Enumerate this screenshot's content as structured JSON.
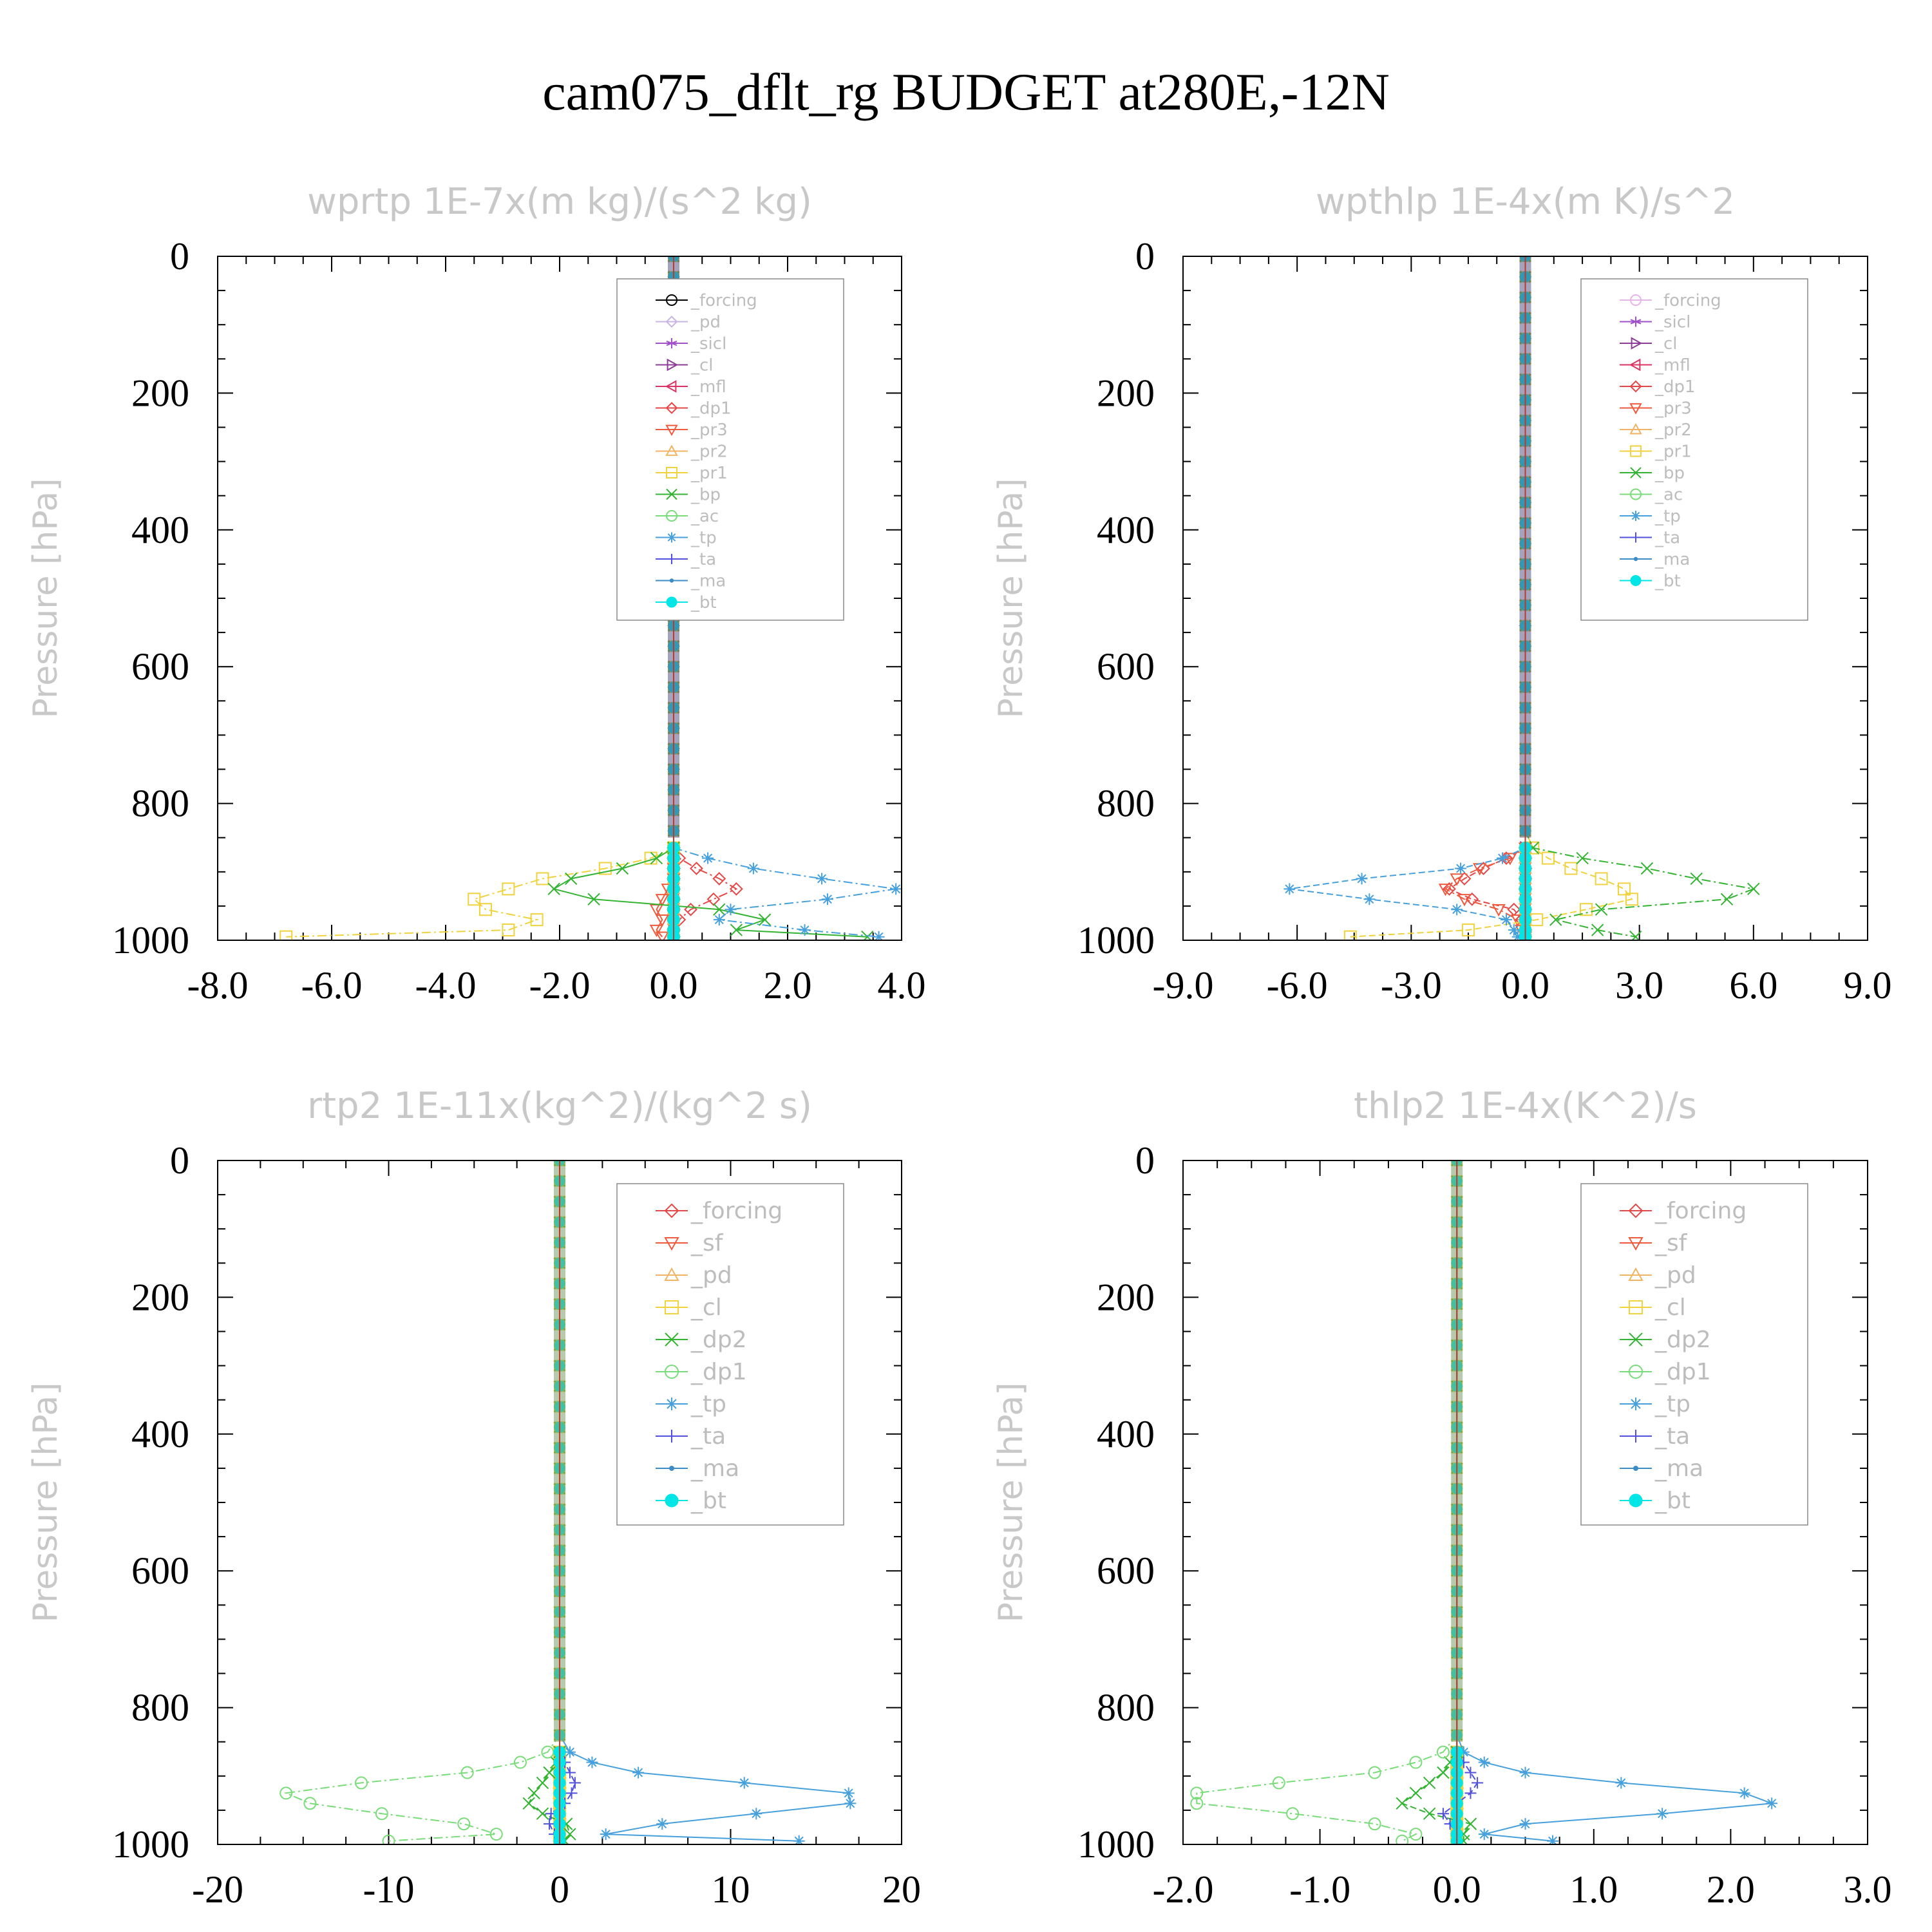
{
  "title": "cam075_dflt_rg  BUDGET at280E,-12N",
  "chart_data": [
    {
      "type": "line",
      "title": "wprtp  1E-7x(m kg)/(s^2 kg)",
      "ylabel": "Pressure [hPa]",
      "xlim": [
        -8,
        4
      ],
      "ylim": [
        0,
        1000
      ],
      "y_inverted": true,
      "xticks": [
        "-8.0",
        "-6.0",
        "-4.0",
        "-2.0",
        "0.0",
        "2.0",
        "4.0"
      ],
      "yticks": [
        "0",
        "200",
        "400",
        "600",
        "800",
        "1000"
      ],
      "legend_position": "top-right",
      "levels": [
        865,
        880,
        895,
        910,
        925,
        940,
        955,
        970,
        985,
        995
      ],
      "series": [
        {
          "name": "_forcing",
          "color": "#000000",
          "marker": "circle",
          "values": [
            0,
            0,
            0,
            0,
            0,
            0,
            0,
            0,
            0,
            0
          ]
        },
        {
          "name": "_pd",
          "color": "#c8b4e6",
          "marker": "diamond",
          "values": [
            0,
            0,
            0,
            0,
            0,
            0,
            0,
            0,
            0,
            0
          ]
        },
        {
          "name": "_sicl",
          "color": "#a050c8",
          "marker": "star",
          "values": [
            0,
            0,
            0,
            0,
            0,
            0,
            0,
            0,
            0,
            0
          ]
        },
        {
          "name": "_cl",
          "color": "#8c3c96",
          "marker": "tri-right",
          "values": [
            0,
            0,
            0,
            0,
            0,
            0,
            0,
            0,
            0,
            0
          ]
        },
        {
          "name": "_mfl",
          "color": "#dc3264",
          "marker": "tri-left",
          "values": [
            0,
            0,
            0,
            0,
            0,
            0,
            0,
            0,
            0,
            0
          ]
        },
        {
          "name": "_dp1",
          "color": "#e64646",
          "marker": "diamond",
          "values": [
            0,
            0.1,
            0.4,
            0.8,
            1.1,
            0.7,
            0.3,
            0.1,
            0,
            0
          ]
        },
        {
          "name": "_pr3",
          "color": "#f05a3c",
          "marker": "tri-down",
          "values": [
            0,
            0,
            0,
            0,
            -0.1,
            -0.2,
            -0.3,
            -0.2,
            -0.3,
            -0.2
          ]
        },
        {
          "name": "_pr2",
          "color": "#f0b464",
          "marker": "tri-up",
          "values": [
            0,
            0,
            0,
            0,
            0,
            0,
            0,
            0,
            0,
            0
          ]
        },
        {
          "name": "_pr1",
          "color": "#f0d23c",
          "marker": "square",
          "values": [
            0,
            -0.4,
            -1.2,
            -2.3,
            -2.9,
            -3.5,
            -3.3,
            -2.4,
            -2.9,
            -6.8
          ]
        },
        {
          "name": "_bp",
          "color": "#32b432",
          "marker": "x",
          "values": [
            0,
            -0.3,
            -0.9,
            -1.8,
            -2.1,
            -1.4,
            0.8,
            1.6,
            1.1,
            3.4
          ]
        },
        {
          "name": "_ac",
          "color": "#78dc78",
          "marker": "circle",
          "values": [
            0,
            0,
            0,
            0,
            0,
            0,
            0,
            0,
            0,
            0
          ]
        },
        {
          "name": "_tp",
          "color": "#46a0dc",
          "marker": "asterisk",
          "values": [
            0,
            0.6,
            1.4,
            2.6,
            3.9,
            2.7,
            1.0,
            0.8,
            2.3,
            3.6
          ]
        },
        {
          "name": "_ta",
          "color": "#5050dc",
          "marker": "plus",
          "values": [
            0,
            0,
            0,
            0,
            0,
            0,
            0,
            0,
            0,
            0
          ]
        },
        {
          "name": "_ma",
          "color": "#3c8cc8",
          "marker": "dot",
          "values": [
            0,
            0,
            0,
            0,
            0,
            0,
            0,
            0,
            0,
            0
          ]
        },
        {
          "name": "_bt",
          "color": "#00e6e6",
          "marker": "filled-circle",
          "values": [
            0,
            0,
            0,
            0,
            0,
            0,
            0,
            0,
            0,
            0
          ]
        }
      ]
    },
    {
      "type": "line",
      "title": "wpthlp  1E-4x(m K)/s^2",
      "ylabel": "Pressure [hPa]",
      "xlim": [
        -9,
        9
      ],
      "ylim": [
        0,
        1000
      ],
      "y_inverted": true,
      "xticks": [
        "-9.0",
        "-6.0",
        "-3.0",
        "0.0",
        "3.0",
        "6.0",
        "9.0"
      ],
      "yticks": [
        "0",
        "200",
        "400",
        "600",
        "800",
        "1000"
      ],
      "legend_position": "top-right",
      "levels": [
        865,
        880,
        895,
        910,
        925,
        940,
        955,
        970,
        985,
        995
      ],
      "series": [
        {
          "name": "_forcing",
          "color": "#e6b4e6",
          "marker": "circle",
          "values": [
            0,
            0,
            0,
            0,
            0,
            0,
            0,
            0,
            0,
            0
          ]
        },
        {
          "name": "_sicl",
          "color": "#a050c8",
          "marker": "star",
          "values": [
            0,
            0,
            0,
            0,
            0,
            0,
            0,
            0,
            0,
            0
          ]
        },
        {
          "name": "_cl",
          "color": "#8c3c96",
          "marker": "tri-right",
          "values": [
            0,
            0,
            0,
            0,
            0,
            0,
            0,
            0,
            0,
            0
          ]
        },
        {
          "name": "_mfl",
          "color": "#dc3264",
          "marker": "tri-left",
          "values": [
            0,
            0,
            0,
            0,
            0,
            0,
            0,
            0,
            0,
            0
          ]
        },
        {
          "name": "_dp1",
          "color": "#e64646",
          "marker": "diamond",
          "values": [
            0,
            -0.5,
            -1.1,
            -1.6,
            -2.0,
            -1.4,
            -0.3,
            -0.1,
            0,
            0
          ]
        },
        {
          "name": "_pr3",
          "color": "#f05a3c",
          "marker": "tri-down",
          "values": [
            0,
            -0.4,
            -1.2,
            -1.8,
            -2.1,
            -1.6,
            -0.7,
            -0.2,
            -0.1,
            0
          ]
        },
        {
          "name": "_pr2",
          "color": "#f0b464",
          "marker": "tri-up",
          "values": [
            0,
            0,
            0,
            0,
            0,
            0,
            0,
            0,
            0,
            0
          ]
        },
        {
          "name": "_pr1",
          "color": "#f0d23c",
          "marker": "square",
          "values": [
            0.2,
            0.6,
            1.2,
            2.0,
            2.6,
            2.8,
            1.6,
            0.3,
            -1.5,
            -4.6
          ]
        },
        {
          "name": "_bp",
          "color": "#32b432",
          "marker": "x",
          "values": [
            0.2,
            1.5,
            3.2,
            4.5,
            6.0,
            5.3,
            2.0,
            0.8,
            1.9,
            2.9
          ]
        },
        {
          "name": "_ac",
          "color": "#78dc78",
          "marker": "circle",
          "values": [
            0,
            0,
            0,
            0,
            0,
            0,
            0,
            0,
            0,
            0
          ]
        },
        {
          "name": "_tp",
          "color": "#46a0dc",
          "marker": "asterisk",
          "values": [
            0,
            -0.6,
            -1.7,
            -4.3,
            -6.2,
            -4.1,
            -1.8,
            -0.5,
            -0.3,
            -0.2
          ]
        },
        {
          "name": "_ta",
          "color": "#5050dc",
          "marker": "plus",
          "values": [
            0,
            0,
            0,
            0,
            0,
            0,
            0,
            0,
            0,
            0
          ]
        },
        {
          "name": "_ma",
          "color": "#3c8cc8",
          "marker": "dot",
          "values": [
            0,
            0,
            0,
            0,
            0,
            0,
            0,
            0,
            0,
            0
          ]
        },
        {
          "name": "_bt",
          "color": "#00e6e6",
          "marker": "filled-circle",
          "values": [
            0,
            0,
            0,
            0,
            0,
            0,
            0,
            0,
            0,
            0
          ]
        }
      ]
    },
    {
      "type": "line",
      "title": "rtp2  1E-11x(kg^2)/(kg^2 s)",
      "ylabel": "Pressure [hPa]",
      "xlim": [
        -20,
        20
      ],
      "ylim": [
        0,
        1000
      ],
      "y_inverted": true,
      "xticks": [
        "-20",
        "-10",
        "0",
        "10",
        "20"
      ],
      "yticks": [
        "0",
        "200",
        "400",
        "600",
        "800",
        "1000"
      ],
      "legend_position": "top-right",
      "levels": [
        865,
        880,
        895,
        910,
        925,
        940,
        955,
        970,
        985,
        995
      ],
      "series": [
        {
          "name": "_forcing",
          "color": "#e64646",
          "marker": "diamond",
          "values": [
            0,
            0,
            0,
            0,
            0,
            0,
            0,
            0,
            0,
            0
          ]
        },
        {
          "name": "_sf",
          "color": "#f05a3c",
          "marker": "tri-down",
          "values": [
            0,
            0,
            0,
            0,
            0,
            0,
            0,
            0,
            0,
            0
          ]
        },
        {
          "name": "_pd",
          "color": "#f0b464",
          "marker": "tri-up",
          "values": [
            0,
            0,
            0,
            0,
            0,
            0,
            0,
            0,
            0,
            0
          ]
        },
        {
          "name": "_cl",
          "color": "#f0d23c",
          "marker": "square",
          "values": [
            0,
            0,
            0,
            0,
            0,
            0,
            0,
            0,
            0,
            0
          ]
        },
        {
          "name": "_dp2",
          "color": "#32b432",
          "marker": "x",
          "values": [
            0,
            -0.2,
            -0.6,
            -1.0,
            -1.5,
            -1.8,
            -1.0,
            0.4,
            0.6,
            0.3
          ]
        },
        {
          "name": "_dp1",
          "color": "#78dc78",
          "marker": "circle",
          "values": [
            -0.7,
            -2.3,
            -5.4,
            -11.6,
            -16.0,
            -14.6,
            -10.4,
            -5.6,
            -3.7,
            -10.0
          ]
        },
        {
          "name": "_tp",
          "color": "#46a0dc",
          "marker": "asterisk",
          "values": [
            0.6,
            1.9,
            4.6,
            10.8,
            16.9,
            17.0,
            11.5,
            6.0,
            2.7,
            14.0
          ]
        },
        {
          "name": "_ta",
          "color": "#5050dc",
          "marker": "plus",
          "values": [
            0,
            0.3,
            0.6,
            0.9,
            0.7,
            0.3,
            -0.5,
            -0.6,
            -0.3,
            0
          ]
        },
        {
          "name": "_ma",
          "color": "#3c8cc8",
          "marker": "dot",
          "values": [
            0,
            0,
            0,
            0,
            0,
            0,
            0,
            0,
            0,
            0
          ]
        },
        {
          "name": "_bt",
          "color": "#00e6e6",
          "marker": "filled-circle",
          "values": [
            0,
            0,
            0,
            0,
            0,
            0,
            0,
            0,
            0,
            0
          ]
        }
      ]
    },
    {
      "type": "line",
      "title": "thlp2  1E-4x(K^2)/s",
      "ylabel": "Pressure [hPa]",
      "xlim": [
        -2,
        3
      ],
      "ylim": [
        0,
        1000
      ],
      "y_inverted": true,
      "xticks": [
        "-2.0",
        "-1.0",
        "0.0",
        "1.0",
        "2.0",
        "3.0"
      ],
      "yticks": [
        "0",
        "200",
        "400",
        "600",
        "800",
        "1000"
      ],
      "legend_position": "top-right",
      "levels": [
        865,
        880,
        895,
        910,
        925,
        940,
        955,
        970,
        985,
        995
      ],
      "series": [
        {
          "name": "_forcing",
          "color": "#e64646",
          "marker": "diamond",
          "values": [
            0,
            0,
            0,
            0,
            0,
            0,
            0,
            0,
            0,
            0
          ]
        },
        {
          "name": "_sf",
          "color": "#f05a3c",
          "marker": "tri-down",
          "values": [
            0,
            0,
            0,
            0,
            0,
            0,
            0,
            0,
            0,
            0
          ]
        },
        {
          "name": "_pd",
          "color": "#f0b464",
          "marker": "tri-up",
          "values": [
            0,
            0,
            0,
            0,
            0,
            0,
            0,
            0,
            0,
            0
          ]
        },
        {
          "name": "_cl",
          "color": "#f0d23c",
          "marker": "square",
          "values": [
            0,
            0,
            0,
            0,
            0,
            0,
            0,
            0,
            0,
            0
          ]
        },
        {
          "name": "_dp2",
          "color": "#32b432",
          "marker": "x",
          "values": [
            0,
            -0.05,
            -0.1,
            -0.2,
            -0.3,
            -0.4,
            -0.2,
            0.1,
            0.05,
            0.05
          ]
        },
        {
          "name": "_dp1",
          "color": "#78dc78",
          "marker": "circle",
          "values": [
            -0.1,
            -0.3,
            -0.6,
            -1.3,
            -1.9,
            -1.9,
            -1.2,
            -0.6,
            -0.3,
            -0.4
          ]
        },
        {
          "name": "_tp",
          "color": "#46a0dc",
          "marker": "asterisk",
          "values": [
            0.05,
            0.2,
            0.5,
            1.2,
            2.1,
            2.3,
            1.5,
            0.5,
            0.2,
            0.7
          ]
        },
        {
          "name": "_ta",
          "color": "#5050dc",
          "marker": "plus",
          "values": [
            0,
            0.05,
            0.1,
            0.15,
            0.1,
            0,
            -0.1,
            -0.05,
            0,
            0
          ]
        },
        {
          "name": "_ma",
          "color": "#3c8cc8",
          "marker": "dot",
          "values": [
            0,
            0,
            0,
            0,
            0,
            0,
            0,
            0,
            0,
            0
          ]
        },
        {
          "name": "_bt",
          "color": "#00e6e6",
          "marker": "filled-circle",
          "values": [
            0,
            0,
            0,
            0,
            0,
            0,
            0,
            0,
            0,
            0
          ]
        }
      ]
    }
  ]
}
